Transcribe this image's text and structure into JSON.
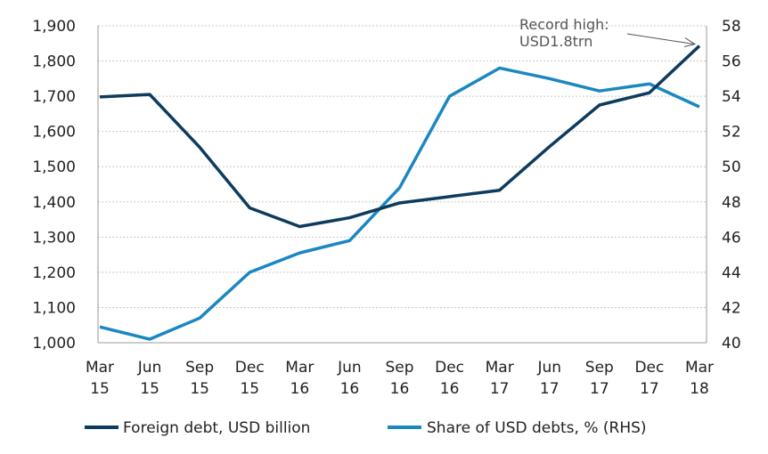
{
  "chart_data": {
    "type": "line",
    "categories": [
      "Mar 15",
      "Jun 15",
      "Sep 15",
      "Dec 15",
      "Mar 16",
      "Jun 16",
      "Sep 16",
      "Dec 16",
      "Mar 17",
      "Jun 17",
      "Sep 17",
      "Dec 17",
      "Mar 18"
    ],
    "category_labels": [
      [
        "Mar",
        "15"
      ],
      [
        "Jun",
        "15"
      ],
      [
        "Sep",
        "15"
      ],
      [
        "Dec",
        "15"
      ],
      [
        "Mar",
        "16"
      ],
      [
        "Jun",
        "16"
      ],
      [
        "Sep",
        "16"
      ],
      [
        "Dec",
        "16"
      ],
      [
        "Mar",
        "17"
      ],
      [
        "Jun",
        "17"
      ],
      [
        "Sep",
        "17"
      ],
      [
        "Dec",
        "17"
      ],
      [
        "Mar",
        "18"
      ]
    ],
    "series": [
      {
        "name": "Foreign debt, USD billion",
        "axis": "left",
        "color": "#0d3b5e",
        "values": [
          1698,
          1705,
          1555,
          1383,
          1330,
          1355,
          1397,
          1415,
          1433,
          1557,
          1675,
          1710,
          1843
        ]
      },
      {
        "name": "Share of USD debts, % (RHS)",
        "axis": "right",
        "color": "#1b87c1",
        "values": [
          40.9,
          40.2,
          41.4,
          44.0,
          45.1,
          45.8,
          48.8,
          54.0,
          55.6,
          55.0,
          54.3,
          54.7,
          53.4
        ]
      }
    ],
    "y_left": {
      "min": 1000,
      "max": 1900,
      "step": 100,
      "ticks": [
        "1,000",
        "1,100",
        "1,200",
        "1,300",
        "1,400",
        "1,500",
        "1,600",
        "1,700",
        "1,800",
        "1,900"
      ]
    },
    "y_right": {
      "min": 40,
      "max": 58,
      "step": 2,
      "ticks": [
        "40",
        "42",
        "44",
        "46",
        "48",
        "50",
        "52",
        "54",
        "56",
        "58"
      ]
    },
    "grid": true,
    "legend_position": "bottom",
    "annotation": {
      "lines": [
        "Record high:",
        "USD1.8trn"
      ],
      "target_category": "Mar 18",
      "target_series": 0
    }
  }
}
